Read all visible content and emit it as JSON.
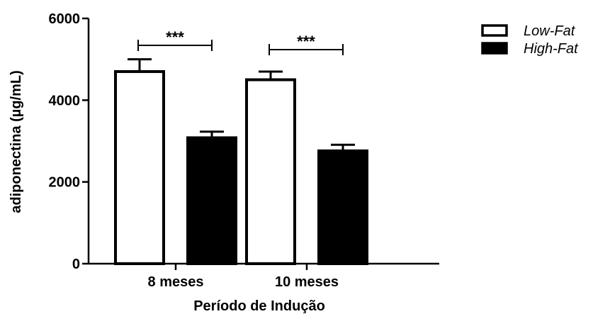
{
  "chart_data": {
    "type": "bar",
    "categories": [
      "8 meses",
      "10 meses"
    ],
    "series": [
      {
        "name": "Low-Fat",
        "values": [
          4700,
          4500
        ],
        "errors": [
          300,
          200
        ],
        "fill": "#ffffff",
        "stroke": "#000000"
      },
      {
        "name": "High-Fat",
        "values": [
          3080,
          2760
        ],
        "errors": [
          150,
          150
        ],
        "fill": "#000000",
        "stroke": "#000000"
      }
    ],
    "title": "",
    "xlabel": "Período de  Indução",
    "ylabel": "adiponectina (µg/mL)",
    "ylim": [
      0,
      6000
    ],
    "yticks": [
      0,
      2000,
      4000,
      6000
    ],
    "grid": false,
    "legend_position": "top-right",
    "annotations": [
      {
        "category": "8 meses",
        "text": "***"
      },
      {
        "category": "10 meses",
        "text": "***"
      }
    ]
  }
}
